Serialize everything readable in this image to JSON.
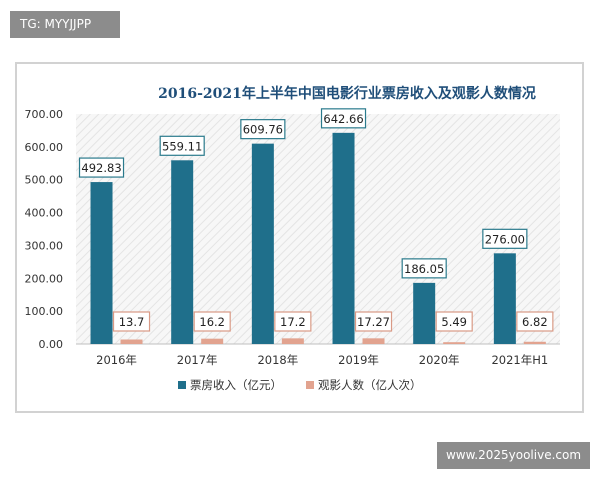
{
  "watermark_top": "TG: MYYJJPP",
  "watermark_bottom": "www.2025yoolive.com",
  "chart_data": {
    "type": "bar",
    "title": "2016-2021年上半年中国电影行业票房收入及观影人数情况",
    "categories": [
      "2016年",
      "2017年",
      "2018年",
      "2019年",
      "2020年",
      "2021年H1"
    ],
    "series": [
      {
        "name": "票房收入（亿元）",
        "values": [
          492.83,
          559.11,
          609.76,
          642.66,
          186.05,
          276.0
        ],
        "labels": [
          "492.83",
          "559.11",
          "609.76",
          "642.66",
          "186.05",
          "276.00"
        ],
        "color": "#1f6f8b"
      },
      {
        "name": "观影人数（亿人次）",
        "values": [
          13.7,
          16.2,
          17.2,
          17.27,
          5.49,
          6.82
        ],
        "labels": [
          "13.7",
          "16.2",
          "17.2",
          "17.27",
          "5.49",
          "6.82"
        ],
        "color": "#e2a38f"
      }
    ],
    "ylim": [
      0,
      700
    ],
    "yticks": [
      "0.00",
      "100.00",
      "200.00",
      "300.00",
      "400.00",
      "500.00",
      "600.00",
      "700.00"
    ],
    "grid": false,
    "legend": "bottom"
  }
}
